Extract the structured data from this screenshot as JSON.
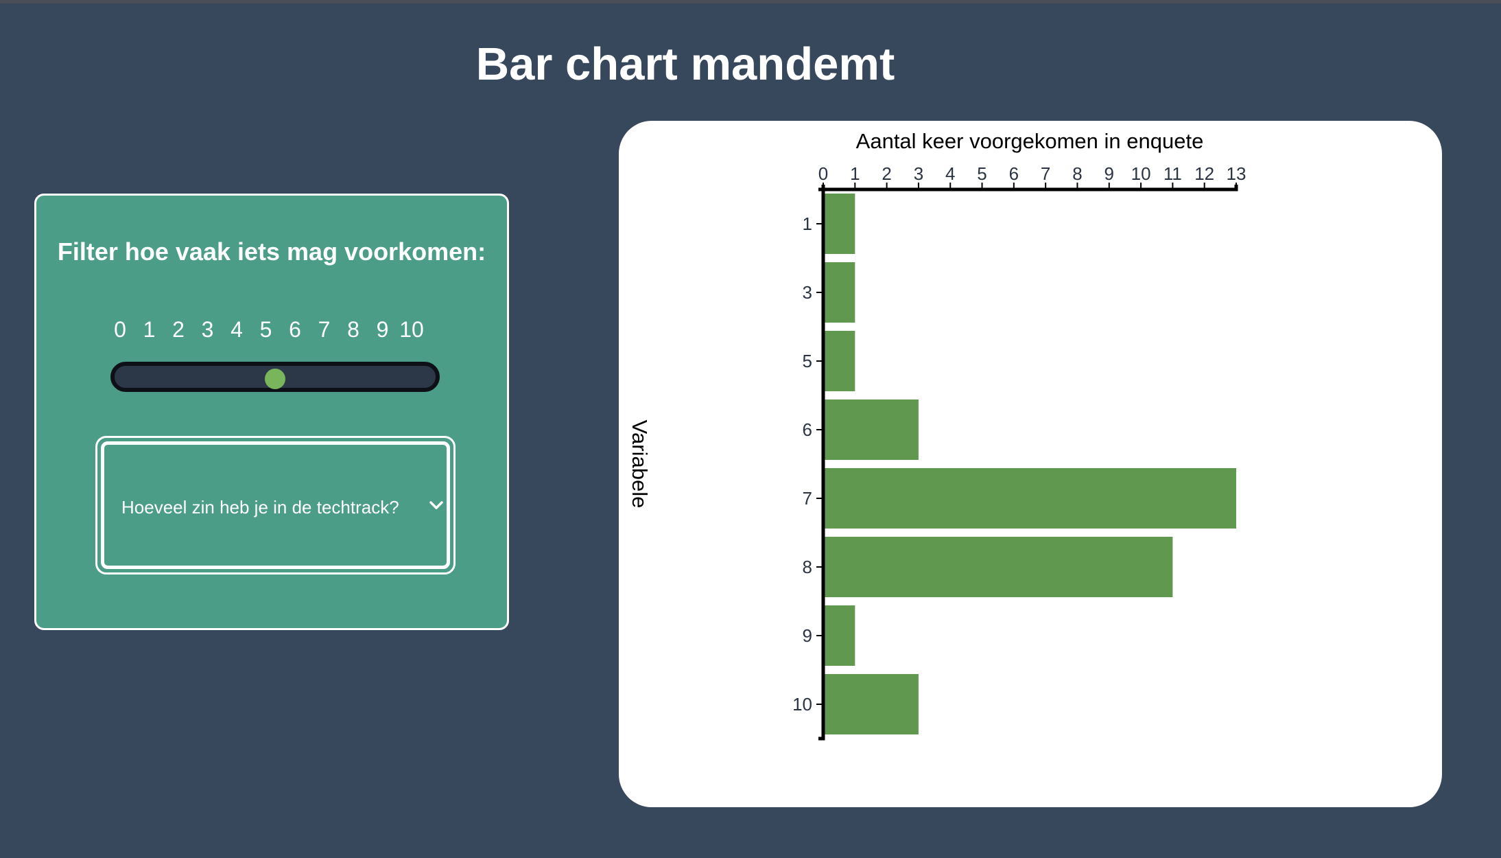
{
  "page": {
    "title": "Bar chart mandemt"
  },
  "filter": {
    "title": "Filter hoe vaak iets mag voorkomen:",
    "slider": {
      "ticks": [
        "0",
        "1",
        "2",
        "3",
        "4",
        "5",
        "6",
        "7",
        "8",
        "9",
        "10"
      ],
      "min": 0,
      "max": 10,
      "value": 5
    },
    "select": {
      "value": "Hoeveel zin heb je in de techtrack?"
    }
  },
  "colors": {
    "background": "#37475c",
    "panel": "#4b9d87",
    "bar": "#61984f",
    "thumb": "#79b65b",
    "track": "#2c3747"
  },
  "icons": {
    "dropdown": "chevron-down-icon"
  },
  "chart_data": {
    "type": "bar",
    "orientation": "horizontal",
    "title": "",
    "xlabel": "Aantal keer voorgekomen in enquete",
    "ylabel": "Variabele",
    "categories": [
      "1",
      "3",
      "5",
      "6",
      "7",
      "8",
      "9",
      "10"
    ],
    "values": [
      1,
      1,
      1,
      3,
      13,
      11,
      1,
      3
    ],
    "xlim": [
      0,
      13
    ],
    "x_ticks": [
      0,
      1,
      2,
      3,
      4,
      5,
      6,
      7,
      8,
      9,
      10,
      11,
      12,
      13
    ],
    "x_axis_position": "top",
    "grid": false,
    "legend": "none"
  }
}
